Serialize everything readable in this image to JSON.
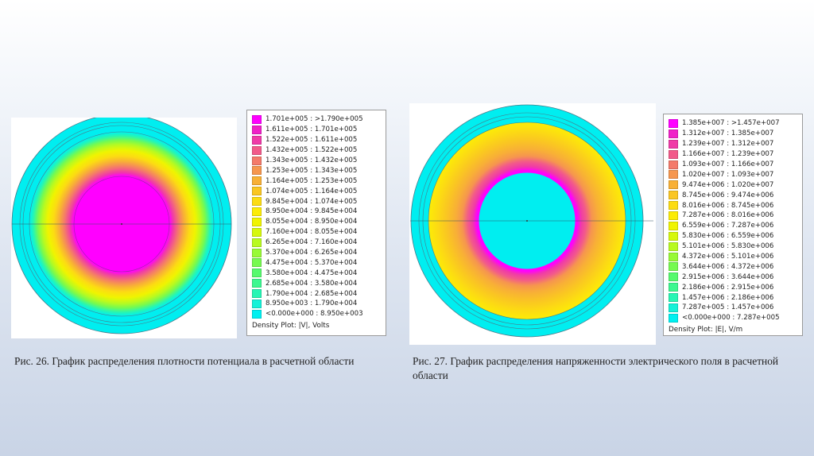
{
  "figure1": {
    "caption": "Рис. 26. График распределения плотности потенциала в расчетной области",
    "legend_title": "Density Plot: |V|, Volts",
    "legend": [
      {
        "label": "1.701e+005 : >1.790e+005",
        "color": "#ff00ff"
      },
      {
        "label": "1.611e+005 : 1.701e+005",
        "color": "#f020c8"
      },
      {
        "label": "1.522e+005 : 1.611e+005",
        "color": "#f03aa8"
      },
      {
        "label": "1.432e+005 : 1.522e+005",
        "color": "#f25a8a"
      },
      {
        "label": "1.343e+005 : 1.432e+005",
        "color": "#f47a6a"
      },
      {
        "label": "1.253e+005 : 1.343e+005",
        "color": "#f6964e"
      },
      {
        "label": "1.164e+005 : 1.253e+005",
        "color": "#f8b036"
      },
      {
        "label": "1.074e+005 : 1.164e+005",
        "color": "#fac622"
      },
      {
        "label": "9.845e+004 : 1.074e+005",
        "color": "#fcdc12"
      },
      {
        "label": "8.950e+004 : 9.845e+004",
        "color": "#fcec06"
      },
      {
        "label": "8.055e+004 : 8.950e+004",
        "color": "#f0f400"
      },
      {
        "label": "7.160e+004 : 8.055e+004",
        "color": "#d6f80c"
      },
      {
        "label": "6.265e+004 : 7.160e+004",
        "color": "#b8fa20"
      },
      {
        "label": "5.370e+004 : 6.265e+004",
        "color": "#98fa36"
      },
      {
        "label": "4.475e+004 : 5.370e+004",
        "color": "#76fa50"
      },
      {
        "label": "3.580e+004 : 4.475e+004",
        "color": "#56fa6e"
      },
      {
        "label": "2.685e+004 : 3.580e+004",
        "color": "#3cf890"
      },
      {
        "label": "1.790e+004 : 2.685e+004",
        "color": "#26f6b4"
      },
      {
        "label": "8.950e+003 : 1.790e+004",
        "color": "#14f2d8"
      },
      {
        "label": "<0.000e+000 : 8.950e+003",
        "color": "#00f0f0"
      }
    ]
  },
  "figure2": {
    "caption": "Рис. 27. График распределения напряженности электрического поля в расчетной области",
    "legend_title": "Density Plot: |E|, V/m",
    "legend": [
      {
        "label": "1.385e+007 : >1.457e+007",
        "color": "#ff00ff"
      },
      {
        "label": "1.312e+007 : 1.385e+007",
        "color": "#f020c8"
      },
      {
        "label": "1.239e+007 : 1.312e+007",
        "color": "#f03aa8"
      },
      {
        "label": "1.166e+007 : 1.239e+007",
        "color": "#f25a8a"
      },
      {
        "label": "1.093e+007 : 1.166e+007",
        "color": "#f47a6a"
      },
      {
        "label": "1.020e+007 : 1.093e+007",
        "color": "#f6964e"
      },
      {
        "label": "9.474e+006 : 1.020e+007",
        "color": "#f8b036"
      },
      {
        "label": "8.745e+006 : 9.474e+006",
        "color": "#fac622"
      },
      {
        "label": "8.016e+006 : 8.745e+006",
        "color": "#fcdc12"
      },
      {
        "label": "7.287e+006 : 8.016e+006",
        "color": "#fcec06"
      },
      {
        "label": "6.559e+006 : 7.287e+006",
        "color": "#f0f400"
      },
      {
        "label": "5.830e+006 : 6.559e+006",
        "color": "#d6f80c"
      },
      {
        "label": "5.101e+006 : 5.830e+006",
        "color": "#b8fa20"
      },
      {
        "label": "4.372e+006 : 5.101e+006",
        "color": "#98fa36"
      },
      {
        "label": "3.644e+006 : 4.372e+006",
        "color": "#76fa50"
      },
      {
        "label": "2.915e+006 : 3.644e+006",
        "color": "#56fa6e"
      },
      {
        "label": "2.186e+006 : 2.915e+006",
        "color": "#3cf890"
      },
      {
        "label": "1.457e+006 : 2.186e+006",
        "color": "#26f6b4"
      },
      {
        "label": "7.287e+005 : 1.457e+006",
        "color": "#14f2d8"
      },
      {
        "label": "<0.000e+000 : 7.287e+005",
        "color": "#00f0f0"
      }
    ]
  }
}
